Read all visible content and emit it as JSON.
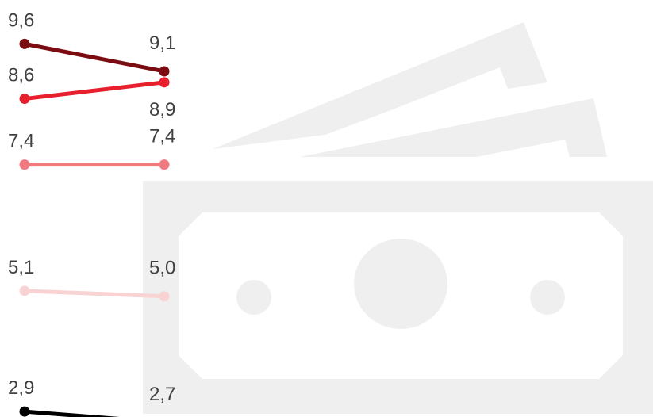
{
  "chart_data": {
    "type": "line",
    "categories": [
      null,
      null
    ],
    "ylim": [
      2.8,
      10.4
    ],
    "series": [
      {
        "color": "#7b0c12",
        "values": [
          9.6,
          9.1
        ],
        "value_labels": [
          "9,6",
          "9,1"
        ]
      },
      {
        "color": "#e8202e",
        "values": [
          8.6,
          8.9
        ],
        "value_labels": [
          "8,6",
          "8,9"
        ]
      },
      {
        "color": "#f07a80",
        "values": [
          7.4,
          7.4
        ],
        "value_labels": [
          "7,4",
          "7,4"
        ]
      },
      {
        "color": "#f9d3d3",
        "values": [
          5.1,
          5.0
        ],
        "value_labels": [
          "5,1",
          "5,0"
        ]
      },
      {
        "color": "#000000",
        "values": [
          2.9,
          2.7
        ],
        "value_labels": [
          "2,9",
          "2,7"
        ]
      }
    ]
  }
}
